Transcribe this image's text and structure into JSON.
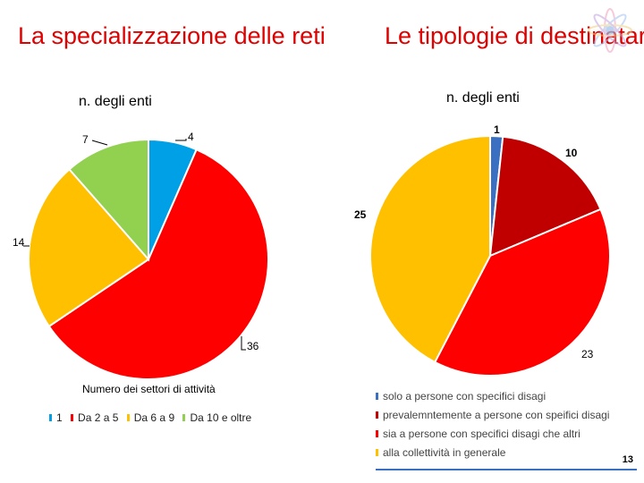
{
  "titles": {
    "left": "La specializzazione delle reti",
    "right": "Le tipologie di destinatari"
  },
  "page_number": "13",
  "colors": {
    "title": "#e00000",
    "blue": "#00a0e6",
    "red": "#ff0000",
    "yellow": "#ffc000",
    "green": "#92d050",
    "darkblue": "#3a6fc1",
    "darkred": "#c00000"
  },
  "chart_data": [
    {
      "type": "pie",
      "title": "n. degli enti",
      "xlabel": "Numero dei settori di attività",
      "categories": [
        "1",
        "Da 2 a 5",
        "Da 6 a 9",
        "Da 10 e oltre"
      ],
      "values": [
        4,
        36,
        14,
        7
      ],
      "colors": [
        "#00a0e6",
        "#ff0000",
        "#ffc000",
        "#92d050"
      ],
      "legend": "bottom"
    },
    {
      "type": "pie",
      "title": "n. degli enti",
      "categories": [
        "solo a persone con specifici disagi",
        "prevalemntemente a persone con speifici disagi",
        "sia a persone con specifici disagi che altri",
        "alla collettività in generale"
      ],
      "values": [
        1,
        10,
        23,
        25
      ],
      "colors": [
        "#3a6fc1",
        "#c00000",
        "#ff0000",
        "#ffc000"
      ],
      "legend": "bottom"
    }
  ]
}
